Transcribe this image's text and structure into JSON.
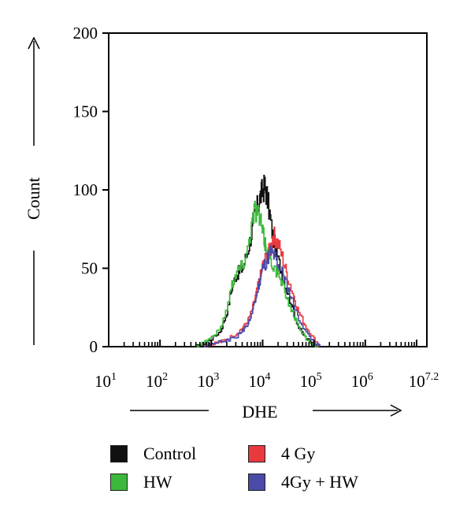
{
  "chart_data": {
    "type": "line",
    "xlabel": "DHE",
    "ylabel": "Count",
    "x_scale": "log",
    "xlim": [
      10,
      15848931.92
    ],
    "ylim": [
      0,
      200
    ],
    "y_ticks": [
      "0",
      "50",
      "100",
      "150",
      "200"
    ],
    "x_ticks": [
      {
        "base": "10",
        "sup": "1"
      },
      {
        "base": "10",
        "sup": "2"
      },
      {
        "base": "10",
        "sup": "3"
      },
      {
        "base": "10",
        "sup": "4"
      },
      {
        "base": "10",
        "sup": "5"
      },
      {
        "base": "10",
        "sup": "6"
      },
      {
        "base": "10",
        "sup": "7.2"
      }
    ],
    "grid": false,
    "legend_position": "bottom",
    "series": [
      {
        "name": "Control",
        "color": "#111111",
        "x": [
          500,
          700,
          1000,
          1500,
          2000,
          2500,
          3000,
          3500,
          4000,
          5000,
          6000,
          7000,
          8000,
          9000,
          10000,
          11000,
          12000,
          14000,
          16000,
          20000,
          25000,
          30000,
          40000,
          50000,
          70000,
          100000,
          130000
        ],
        "y": [
          0,
          2,
          5,
          10,
          22,
          38,
          45,
          48,
          50,
          60,
          72,
          83,
          90,
          96,
          100,
          102,
          96,
          82,
          68,
          55,
          44,
          35,
          22,
          12,
          5,
          1,
          0
        ]
      },
      {
        "name": "HW",
        "color": "#3cb83c",
        "x": [
          500,
          700,
          1000,
          1500,
          2000,
          2500,
          3000,
          3500,
          4000,
          5000,
          6000,
          7000,
          8000,
          9000,
          10000,
          11000,
          12000,
          14000,
          16000,
          20000,
          25000,
          30000,
          40000,
          50000,
          70000,
          100000,
          130000
        ],
        "y": [
          0,
          3,
          6,
          12,
          25,
          40,
          47,
          50,
          52,
          62,
          78,
          88,
          86,
          80,
          72,
          66,
          62,
          57,
          52,
          45,
          38,
          30,
          20,
          12,
          5,
          1,
          0
        ]
      },
      {
        "name": "4 Gy",
        "color": "#e8393f",
        "x": [
          700,
          1000,
          1500,
          2000,
          3000,
          4000,
          5000,
          6000,
          7000,
          8000,
          9000,
          10000,
          12000,
          14000,
          16000,
          18000,
          20000,
          25000,
          30000,
          40000,
          50000,
          70000,
          100000,
          130000
        ],
        "y": [
          0,
          2,
          3,
          5,
          8,
          12,
          16,
          22,
          30,
          38,
          45,
          52,
          58,
          62,
          72,
          68,
          65,
          55,
          45,
          32,
          22,
          12,
          5,
          0
        ]
      },
      {
        "name": "4Gy + HW",
        "color": "#4a4aa8",
        "x": [
          700,
          1000,
          1500,
          2000,
          3000,
          4000,
          5000,
          6000,
          7000,
          8000,
          9000,
          10000,
          12000,
          14000,
          16000,
          18000,
          20000,
          25000,
          30000,
          40000,
          50000,
          70000,
          100000,
          130000
        ],
        "y": [
          0,
          2,
          3,
          4,
          6,
          10,
          14,
          20,
          28,
          36,
          44,
          50,
          55,
          60,
          58,
          56,
          52,
          46,
          38,
          27,
          18,
          9,
          3,
          0
        ]
      }
    ]
  },
  "legend": {
    "items": [
      {
        "label": "Control",
        "color": "#111111"
      },
      {
        "label": "4 Gy",
        "color": "#e8393f"
      },
      {
        "label": "HW",
        "color": "#3cb83c"
      },
      {
        "label": "4Gy + HW",
        "color": "#4a4aa8"
      }
    ]
  }
}
